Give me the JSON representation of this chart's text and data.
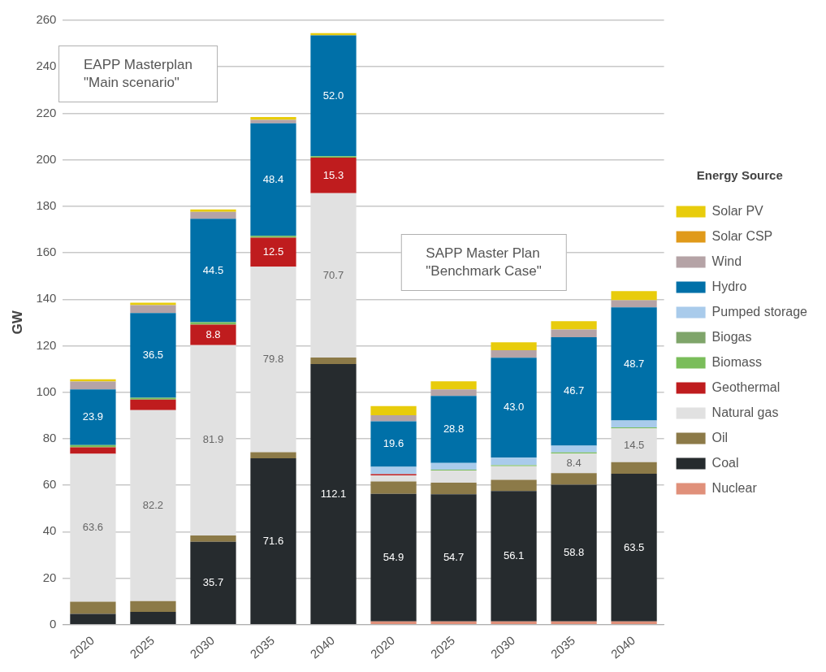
{
  "chart_data": {
    "type": "bar",
    "stacked": true,
    "ylabel": "GW",
    "legend_title": "Energy Source",
    "legend": "right",
    "grid": "y",
    "categories": [
      "2020",
      "2025",
      "2030",
      "2035",
      "2040",
      "2020",
      "2025",
      "2030",
      "2035",
      "2040"
    ],
    "ylim": [
      0,
      260
    ],
    "yticks": [
      0,
      20,
      40,
      60,
      80,
      100,
      120,
      140,
      160,
      180,
      200,
      220,
      240,
      260
    ],
    "annotations": [
      "EAPP Masterplan\n\"Main scenario\"",
      "SAPP Master Plan\n\"Benchmark Case\""
    ],
    "series": [
      {
        "name": "Nuclear",
        "color": "#e0907a",
        "values": [
          null,
          null,
          null,
          null,
          null,
          1.4,
          1.4,
          1.4,
          1.4,
          1.4
        ]
      },
      {
        "name": "Coal",
        "color": "#262b2e",
        "values": [
          4.6,
          5.5,
          35.7,
          71.6,
          112.1,
          54.9,
          54.7,
          56.1,
          58.8,
          63.5
        ],
        "value_labels": [
          null,
          null,
          "35.7",
          "71.6",
          "112.1",
          "54.9",
          "54.7",
          "56.1",
          "58.8",
          "63.5"
        ]
      },
      {
        "name": "Oil",
        "color": "#8c7a48",
        "values": [
          5.3,
          4.6,
          2.7,
          2.6,
          2.8,
          5.3,
          5.0,
          4.8,
          5.0,
          5.0
        ]
      },
      {
        "name": "Natural gas",
        "color": "#e1e1e1",
        "values": [
          63.6,
          82.2,
          81.9,
          79.8,
          70.7,
          2.6,
          5.2,
          5.9,
          8.4,
          14.5
        ],
        "value_labels": [
          "63.6",
          "82.2",
          "81.9",
          "79.8",
          "70.7",
          null,
          null,
          null,
          "8.4",
          "14.5"
        ]
      },
      {
        "name": "Geothermal",
        "color": "#bf1c1e",
        "values": [
          2.8,
          4.5,
          8.8,
          12.5,
          15.3,
          0.6,
          null,
          null,
          null,
          null
        ],
        "value_labels": [
          null,
          null,
          "8.8",
          "12.5",
          "15.3",
          null,
          null,
          null,
          null,
          null
        ]
      },
      {
        "name": "Biomass",
        "color": "#7abd5a",
        "values": [
          1.0,
          0.8,
          1.0,
          0.8,
          0.6,
          null,
          0.4,
          0.4,
          0.5,
          0.5
        ]
      },
      {
        "name": "Biogas",
        "color": "#7fa56a",
        "values": [
          null,
          null,
          null,
          null,
          null,
          null,
          null,
          null,
          null,
          null
        ]
      },
      {
        "name": "Pumped storage",
        "color": "#a9cbeb",
        "values": [
          null,
          null,
          null,
          null,
          null,
          3.1,
          2.9,
          3.2,
          2.9,
          2.9
        ]
      },
      {
        "name": "Hydro",
        "color": "#0070a8",
        "values": [
          23.9,
          36.5,
          44.5,
          48.4,
          52.0,
          19.6,
          28.8,
          43.0,
          46.7,
          48.7
        ],
        "value_labels": [
          "23.9",
          "36.5",
          "44.5",
          "48.4",
          "52.0",
          "19.6",
          "28.8",
          "43.0",
          "46.7",
          "48.7"
        ]
      },
      {
        "name": "Wind",
        "color": "#b5a3a6",
        "values": [
          3.4,
          3.4,
          3.0,
          1.5,
          null,
          2.6,
          2.8,
          3.3,
          3.3,
          3.1
        ]
      },
      {
        "name": "Solar CSP",
        "color": "#e09a1a",
        "values": [
          null,
          null,
          null,
          null,
          null,
          null,
          null,
          null,
          null,
          null
        ]
      },
      {
        "name": "Solar PV",
        "color": "#e8cc0c",
        "values": [
          1.0,
          1.0,
          1.0,
          1.2,
          1.0,
          3.9,
          3.5,
          3.4,
          3.6,
          3.9
        ]
      }
    ]
  }
}
